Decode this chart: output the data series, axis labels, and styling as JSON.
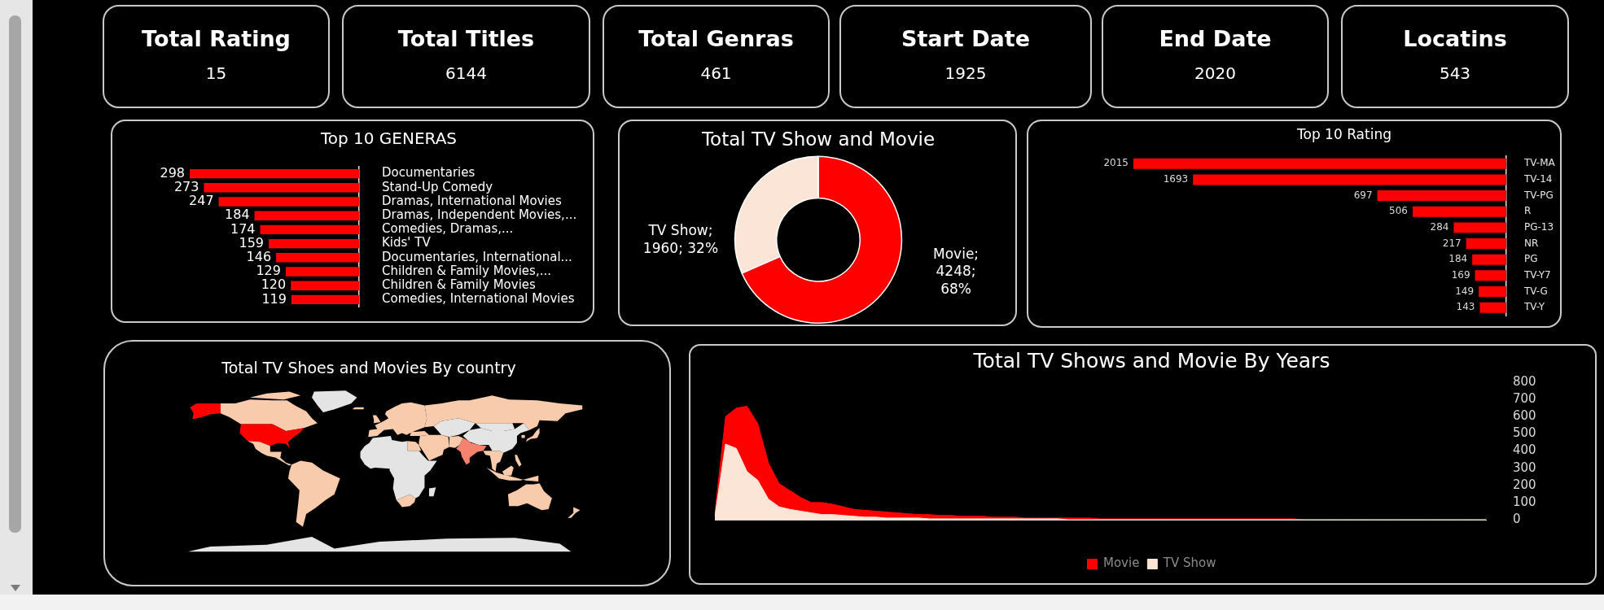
{
  "chart_data": [
    {
      "type": "other",
      "title": "Total Rating",
      "annotations": [
        "15"
      ]
    },
    {
      "type": "other",
      "title": "Total Titles",
      "annotations": [
        "6144"
      ]
    },
    {
      "type": "other",
      "title": "Total Genras",
      "annotations": [
        "461"
      ]
    },
    {
      "type": "other",
      "title": "Start Date",
      "annotations": [
        "1925"
      ]
    },
    {
      "type": "other",
      "title": "End Date",
      "annotations": [
        "2020"
      ]
    },
    {
      "type": "other",
      "title": "Locatins",
      "annotations": [
        "543"
      ]
    },
    {
      "type": "bar",
      "orientation": "horizontal",
      "title": "Top 10 GENERAS",
      "categories": [
        "Documentaries",
        "Stand-Up Comedy",
        "Dramas, International Movies",
        "Dramas, Independent Movies,...",
        "Comedies, Dramas,...",
        "Kids' TV",
        "Documentaries, International...",
        "Children & Family Movies,...",
        "Children & Family Movies",
        "Comedies, International Movies"
      ],
      "values": [
        298,
        273,
        247,
        184,
        174,
        159,
        146,
        129,
        120,
        119
      ],
      "color": "#ff0000",
      "data_labels": true,
      "tick_labels": "y"
    },
    {
      "type": "donut",
      "title": "Total TV Show and Movie",
      "categories": [
        "Movie",
        "TV Show"
      ],
      "values": [
        4248,
        1960
      ],
      "colors": [
        "#ff0000",
        "#fbe5d6"
      ],
      "value_labels": [
        "; 4248; 68%",
        "; 1960; 32%"
      ]
    },
    {
      "type": "bar",
      "orientation": "horizontal",
      "title": "Top 10 Rating",
      "categories": [
        "TV-MA",
        "TV-14",
        "TV-PG",
        "R",
        "PG-13",
        "NR",
        "PG",
        "TV-Y7",
        "TV-G",
        "TV-Y"
      ],
      "values": [
        2015,
        1693,
        697,
        506,
        284,
        217,
        184,
        169,
        149,
        143
      ],
      "color": "#ff0000",
      "data_labels": true,
      "tick_labels": "y"
    },
    {
      "type": "other",
      "title": "Total TV Shoes and Movies By country"
    },
    {
      "type": "area",
      "title": "Total TV Shows and Movie By Years",
      "categories": [
        null,
        null,
        null,
        null,
        null,
        null,
        null,
        null,
        null,
        null,
        null,
        null,
        null,
        null,
        null,
        null,
        null,
        null,
        null,
        null,
        null,
        null,
        null,
        null,
        null,
        null,
        null,
        null,
        null,
        null,
        null,
        null,
        null,
        null,
        null,
        null,
        null,
        null,
        null,
        null,
        null,
        null,
        null,
        null,
        null,
        null,
        null,
        null,
        null,
        null,
        null,
        null,
        null,
        null,
        null,
        null,
        null,
        null,
        null,
        null,
        null,
        null,
        null,
        null,
        null,
        null,
        null,
        null,
        null,
        null,
        null,
        null,
        null
      ],
      "series": [
        {
          "name": "Movie",
          "color": "#ff0000",
          "values": [
            40,
            600,
            650,
            660,
            560,
            330,
            210,
            170,
            130,
            100,
            100,
            90,
            75,
            60,
            55,
            50,
            45,
            40,
            35,
            30,
            30,
            25,
            25,
            20,
            20,
            20,
            15,
            15,
            15,
            10,
            10,
            10,
            10,
            10,
            10,
            10,
            5,
            5,
            5,
            5,
            5,
            5,
            5,
            5,
            5,
            5,
            5,
            5,
            5,
            5,
            5,
            5,
            5,
            5,
            5,
            0,
            0,
            0,
            0,
            0,
            0,
            0,
            0,
            0,
            0,
            0,
            0,
            0,
            0,
            0,
            0,
            0,
            0
          ]
        },
        {
          "name": "TV Show",
          "color": "#fbe5d6",
          "values": [
            20,
            440,
            415,
            280,
            230,
            120,
            75,
            60,
            50,
            40,
            30,
            30,
            25,
            20,
            15,
            15,
            10,
            10,
            10,
            10,
            5,
            5,
            5,
            5,
            5,
            5,
            5,
            5,
            5,
            5,
            5,
            5,
            5,
            0,
            0,
            0,
            0,
            0,
            0,
            0,
            0,
            0,
            0,
            0,
            0,
            0,
            0,
            0,
            0,
            0,
            0,
            0,
            0,
            0,
            0,
            0,
            0,
            0,
            0,
            0,
            0,
            0,
            0,
            0,
            0,
            0,
            0,
            0,
            0,
            0,
            0,
            0,
            0
          ]
        }
      ],
      "ylim": [
        0,
        800
      ],
      "yticks": [
        0,
        100,
        200,
        300,
        400,
        500,
        600,
        700,
        800
      ],
      "legend": "bottom",
      "tick_labels": "y"
    }
  ]
}
